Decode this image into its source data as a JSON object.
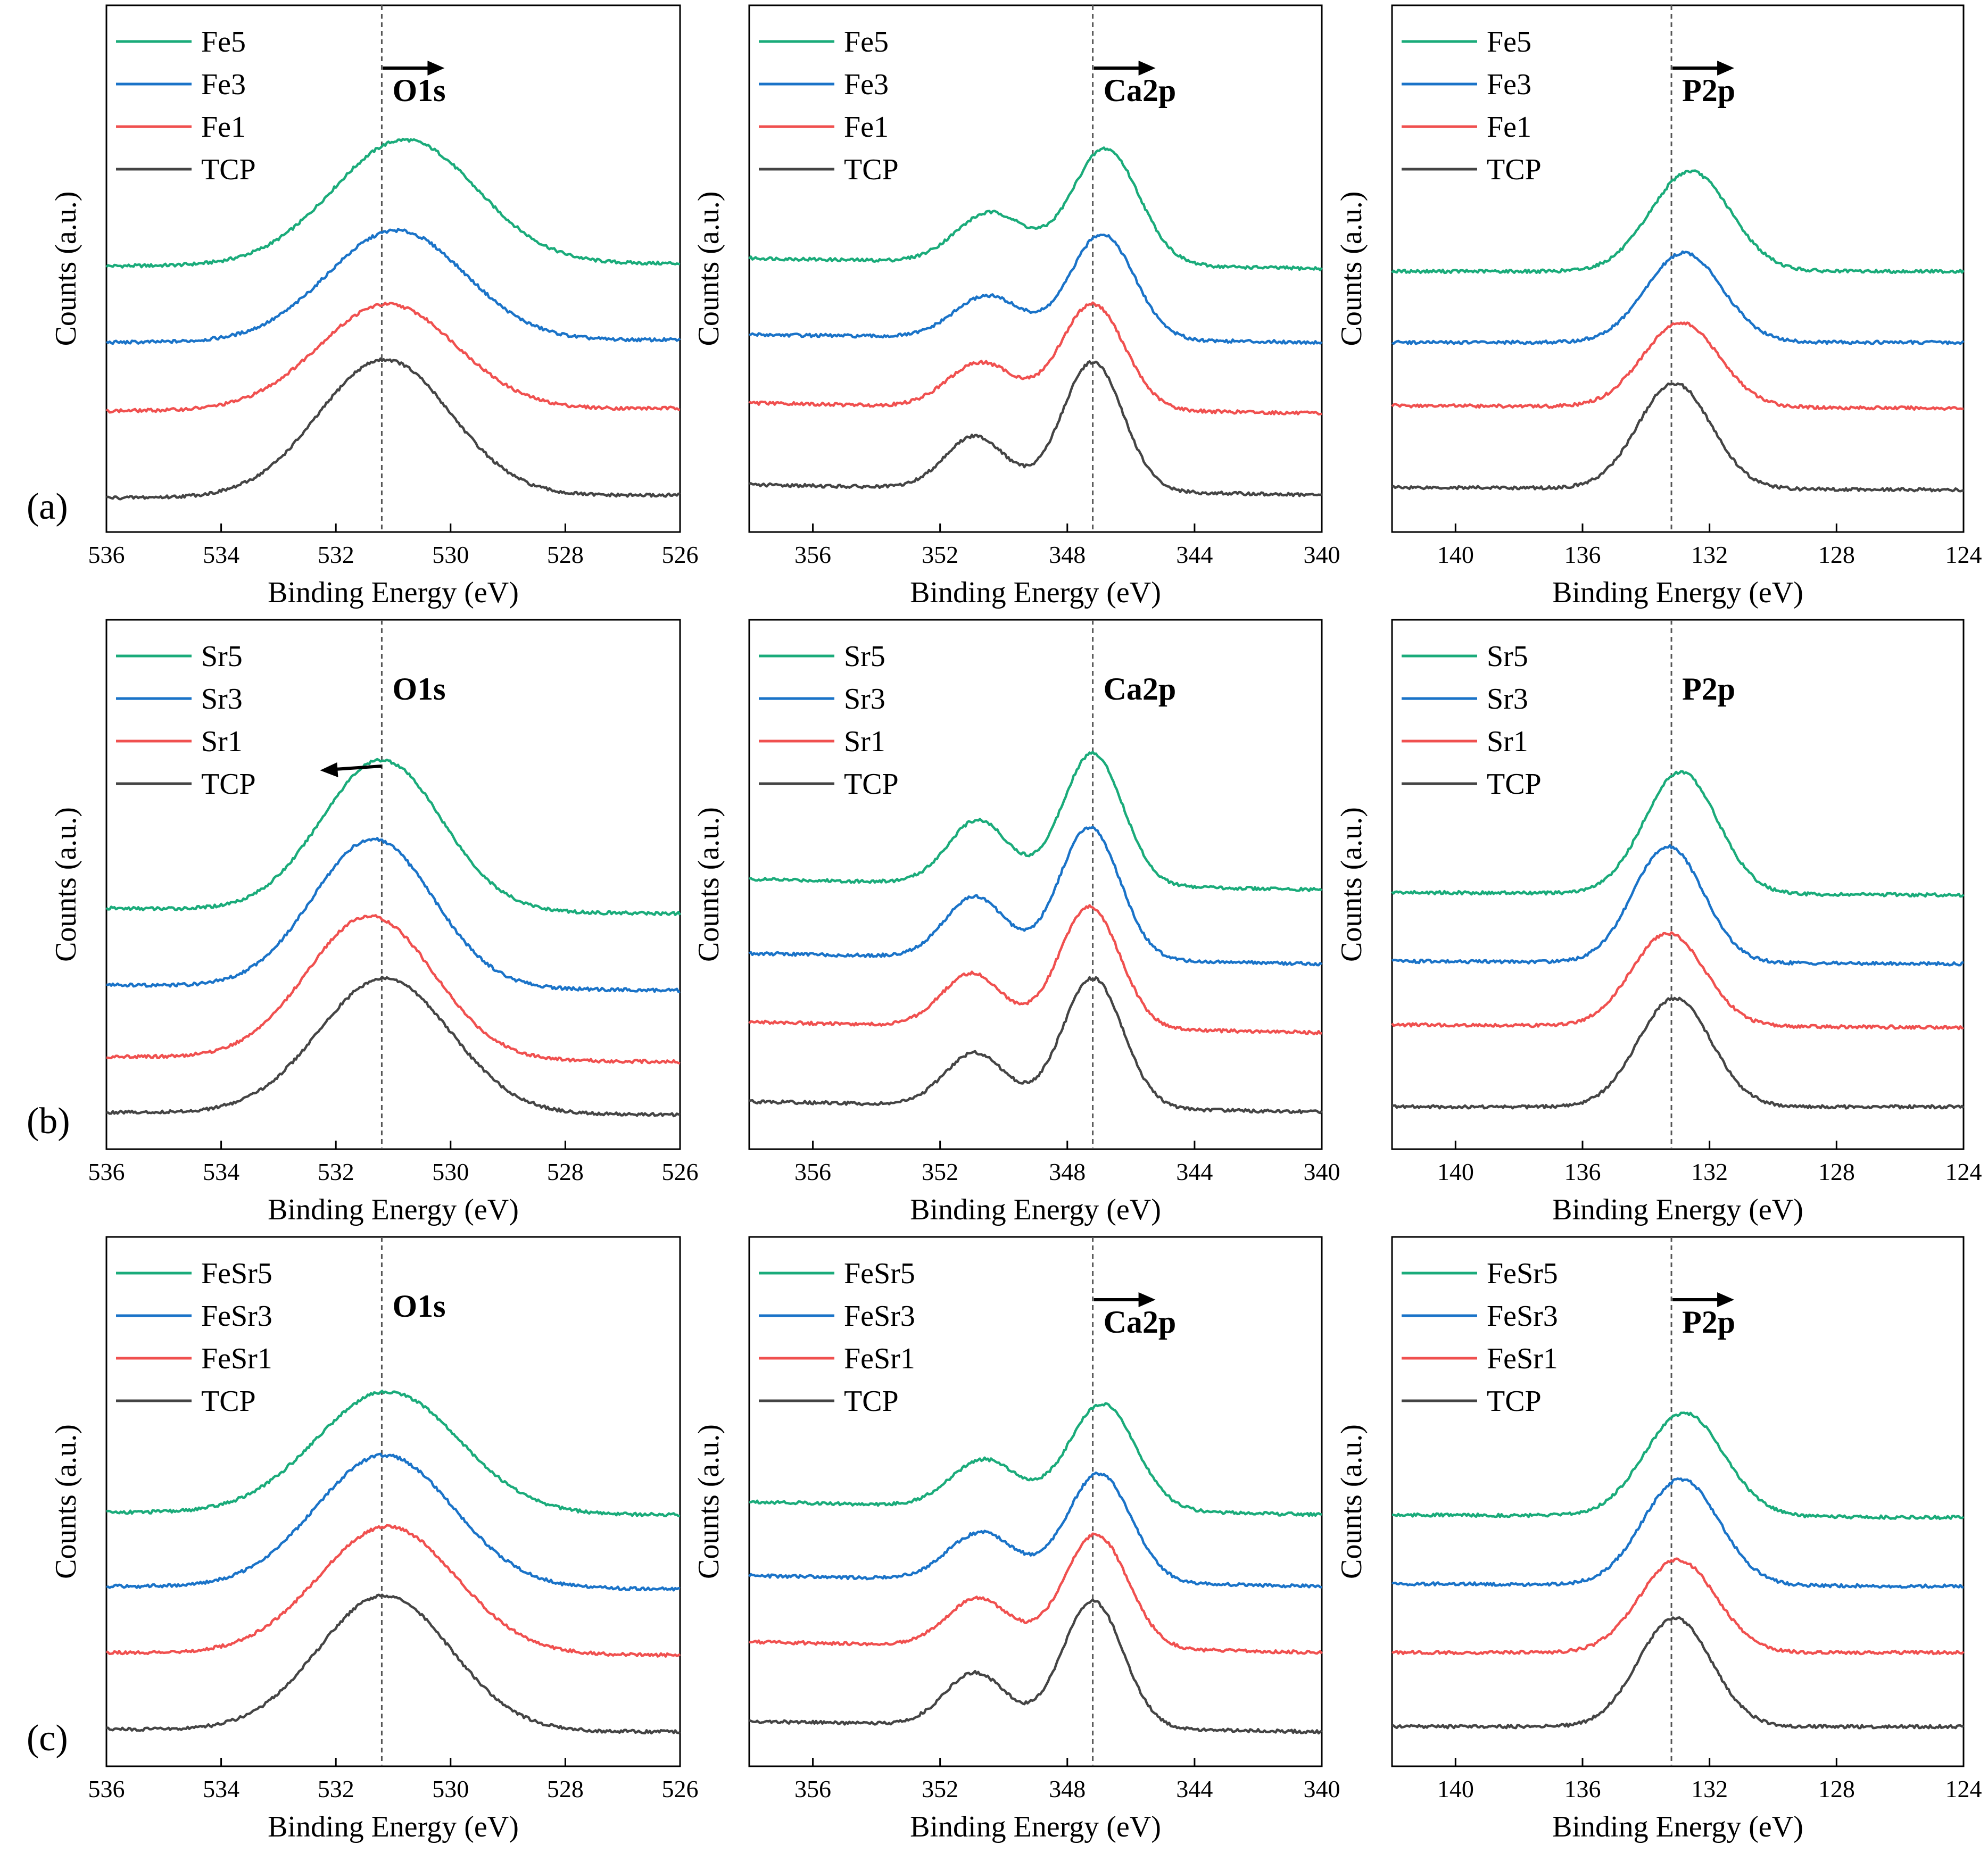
{
  "figure": {
    "rows": [
      "(a)",
      "(b)",
      "(c)"
    ]
  },
  "chart_data": [
    {
      "type": "line",
      "row": "(a)",
      "peak_label": "O1s",
      "shift_arrow": "right",
      "xlabel": "Binding Energy (eV)",
      "ylabel": "Counts (a.u.)",
      "xlim": [
        536,
        526
      ],
      "xticks": [
        536,
        534,
        532,
        530,
        528,
        526
      ],
      "reference_line_x": 531.2,
      "series": [
        {
          "name": "Fe5",
          "color": "#1aab7a",
          "baseline_left": 0.505,
          "baseline_right": 0.51,
          "peaks": [
            {
              "center": 530.8,
              "height": 0.237,
              "width": 1.25
            }
          ]
        },
        {
          "name": "Fe3",
          "color": "#1a73c8",
          "baseline_left": 0.36,
          "baseline_right": 0.365,
          "peaks": [
            {
              "center": 530.95,
              "height": 0.21,
              "width": 1.2
            }
          ]
        },
        {
          "name": "Fe1",
          "color": "#f0504f",
          "baseline_left": 0.23,
          "baseline_right": 0.235,
          "peaks": [
            {
              "center": 531.1,
              "height": 0.2,
              "width": 1.2
            }
          ]
        },
        {
          "name": "TCP",
          "color": "#444444",
          "baseline_left": 0.065,
          "baseline_right": 0.07,
          "peaks": [
            {
              "center": 531.15,
              "height": 0.26,
              "width": 1.15
            }
          ]
        }
      ]
    },
    {
      "type": "line",
      "row": "(a)",
      "peak_label": "Ca2p",
      "shift_arrow": "right",
      "xlabel": "Binding Energy (eV)",
      "ylabel": "Counts (a.u.)",
      "xlim": [
        358,
        340
      ],
      "xticks": [
        356,
        352,
        348,
        344,
        340
      ],
      "reference_line_x": 347.2,
      "series": [
        {
          "name": "Fe5",
          "color": "#1aab7a",
          "baseline_left": 0.52,
          "baseline_right": 0.5,
          "peaks": [
            {
              "center": 346.8,
              "height": 0.22,
              "width": 1.05
            },
            {
              "center": 350.4,
              "height": 0.095,
              "width": 1.1
            }
          ]
        },
        {
          "name": "Fe3",
          "color": "#1a73c8",
          "baseline_left": 0.375,
          "baseline_right": 0.36,
          "peaks": [
            {
              "center": 346.9,
              "height": 0.2,
              "width": 1.0
            },
            {
              "center": 350.5,
              "height": 0.08,
              "width": 1.05
            }
          ]
        },
        {
          "name": "Fe1",
          "color": "#f0504f",
          "baseline_left": 0.245,
          "baseline_right": 0.225,
          "peaks": [
            {
              "center": 347.2,
              "height": 0.2,
              "width": 1.0
            },
            {
              "center": 350.7,
              "height": 0.085,
              "width": 1.05
            }
          ]
        },
        {
          "name": "TCP",
          "color": "#444444",
          "baseline_left": 0.09,
          "baseline_right": 0.07,
          "peaks": [
            {
              "center": 347.2,
              "height": 0.245,
              "width": 0.95
            },
            {
              "center": 350.9,
              "height": 0.1,
              "width": 0.95
            }
          ]
        }
      ]
    },
    {
      "type": "line",
      "row": "(a)",
      "peak_label": "P2p",
      "shift_arrow": "right",
      "xlabel": "Binding Energy (eV)",
      "ylabel": "Counts (a.u.)",
      "xlim": [
        142,
        124
      ],
      "xticks": [
        140,
        136,
        132,
        128,
        124
      ],
      "reference_line_x": 133.2,
      "series": [
        {
          "name": "Fe5",
          "color": "#1aab7a",
          "baseline_left": 0.495,
          "baseline_right": 0.495,
          "peaks": [
            {
              "center": 132.6,
              "height": 0.19,
              "width": 1.25
            }
          ]
        },
        {
          "name": "Fe3",
          "color": "#1a73c8",
          "baseline_left": 0.36,
          "baseline_right": 0.36,
          "peaks": [
            {
              "center": 132.8,
              "height": 0.17,
              "width": 1.2
            }
          ]
        },
        {
          "name": "Fe1",
          "color": "#f0504f",
          "baseline_left": 0.24,
          "baseline_right": 0.235,
          "peaks": [
            {
              "center": 132.9,
              "height": 0.16,
              "width": 1.2
            }
          ]
        },
        {
          "name": "TCP",
          "color": "#444444",
          "baseline_left": 0.085,
          "baseline_right": 0.08,
          "peaks": [
            {
              "center": 133.1,
              "height": 0.2,
              "width": 1.15
            }
          ]
        }
      ]
    },
    {
      "type": "line",
      "row": "(b)",
      "peak_label": "O1s",
      "shift_arrow": "left",
      "xlabel": "Binding Energy (eV)",
      "ylabel": "Counts (a.u.)",
      "xlim": [
        536,
        526
      ],
      "xticks": [
        536,
        534,
        532,
        530,
        528,
        526
      ],
      "reference_line_x": 531.2,
      "series": [
        {
          "name": "Sr5",
          "color": "#1aab7a",
          "baseline_left": 0.455,
          "baseline_right": 0.445,
          "peaks": [
            {
              "center": 531.2,
              "height": 0.285,
              "width": 1.05
            }
          ]
        },
        {
          "name": "Sr3",
          "color": "#1a73c8",
          "baseline_left": 0.31,
          "baseline_right": 0.3,
          "peaks": [
            {
              "center": 531.35,
              "height": 0.28,
              "width": 1.05
            }
          ]
        },
        {
          "name": "Sr1",
          "color": "#f0504f",
          "baseline_left": 0.175,
          "baseline_right": 0.165,
          "peaks": [
            {
              "center": 531.4,
              "height": 0.27,
              "width": 1.1
            }
          ]
        },
        {
          "name": "TCP",
          "color": "#444444",
          "baseline_left": 0.07,
          "baseline_right": 0.065,
          "peaks": [
            {
              "center": 531.15,
              "height": 0.255,
              "width": 1.15
            }
          ]
        }
      ]
    },
    {
      "type": "line",
      "row": "(b)",
      "peak_label": "Ca2p",
      "shift_arrow": "none",
      "xlabel": "Binding Energy (eV)",
      "ylabel": "Counts (a.u.)",
      "xlim": [
        358,
        340
      ],
      "xticks": [
        356,
        352,
        348,
        344,
        340
      ],
      "reference_line_x": 347.2,
      "series": [
        {
          "name": "Sr5",
          "color": "#1aab7a",
          "baseline_left": 0.51,
          "baseline_right": 0.49,
          "peaks": [
            {
              "center": 347.2,
              "height": 0.25,
              "width": 0.95
            },
            {
              "center": 350.8,
              "height": 0.12,
              "width": 0.95
            }
          ]
        },
        {
          "name": "Sr3",
          "color": "#1a73c8",
          "baseline_left": 0.37,
          "baseline_right": 0.35,
          "peaks": [
            {
              "center": 347.3,
              "height": 0.25,
              "width": 0.95
            },
            {
              "center": 350.9,
              "height": 0.115,
              "width": 0.95
            }
          ]
        },
        {
          "name": "Sr1",
          "color": "#f0504f",
          "baseline_left": 0.24,
          "baseline_right": 0.22,
          "peaks": [
            {
              "center": 347.3,
              "height": 0.23,
              "width": 0.95
            },
            {
              "center": 351.0,
              "height": 0.1,
              "width": 0.95
            }
          ]
        },
        {
          "name": "TCP",
          "color": "#444444",
          "baseline_left": 0.09,
          "baseline_right": 0.07,
          "peaks": [
            {
              "center": 347.2,
              "height": 0.245,
              "width": 0.95
            },
            {
              "center": 350.9,
              "height": 0.1,
              "width": 0.95
            }
          ]
        }
      ]
    },
    {
      "type": "line",
      "row": "(b)",
      "peak_label": "P2p",
      "shift_arrow": "none",
      "xlabel": "Binding Energy (eV)",
      "ylabel": "Counts (a.u.)",
      "xlim": [
        142,
        124
      ],
      "xticks": [
        140,
        136,
        132,
        128,
        124
      ],
      "reference_line_x": 133.2,
      "series": [
        {
          "name": "Sr5",
          "color": "#1aab7a",
          "baseline_left": 0.485,
          "baseline_right": 0.48,
          "peaks": [
            {
              "center": 132.9,
              "height": 0.23,
              "width": 1.15
            }
          ]
        },
        {
          "name": "Sr3",
          "color": "#1a73c8",
          "baseline_left": 0.355,
          "baseline_right": 0.35,
          "peaks": [
            {
              "center": 133.3,
              "height": 0.22,
              "width": 1.1
            }
          ]
        },
        {
          "name": "Sr1",
          "color": "#f0504f",
          "baseline_left": 0.235,
          "baseline_right": 0.23,
          "peaks": [
            {
              "center": 133.3,
              "height": 0.175,
              "width": 1.15
            }
          ]
        },
        {
          "name": "TCP",
          "color": "#444444",
          "baseline_left": 0.08,
          "baseline_right": 0.08,
          "peaks": [
            {
              "center": 133.1,
              "height": 0.205,
              "width": 1.15
            }
          ]
        }
      ]
    },
    {
      "type": "line",
      "row": "(c)",
      "peak_label": "O1s",
      "shift_arrow": "none",
      "xlabel": "Binding Energy (eV)",
      "ylabel": "Counts (a.u.)",
      "xlim": [
        536,
        526
      ],
      "xticks": [
        536,
        534,
        532,
        530,
        528,
        526
      ],
      "reference_line_x": 531.2,
      "series": [
        {
          "name": "FeSr5",
          "color": "#1aab7a",
          "baseline_left": 0.48,
          "baseline_right": 0.475,
          "peaks": [
            {
              "center": 531.1,
              "height": 0.23,
              "width": 1.25
            }
          ]
        },
        {
          "name": "FeSr3",
          "color": "#1a73c8",
          "baseline_left": 0.34,
          "baseline_right": 0.335,
          "peaks": [
            {
              "center": 531.15,
              "height": 0.25,
              "width": 1.2
            }
          ]
        },
        {
          "name": "FeSr1",
          "color": "#f0504f",
          "baseline_left": 0.215,
          "baseline_right": 0.21,
          "peaks": [
            {
              "center": 531.1,
              "height": 0.24,
              "width": 1.2
            }
          ]
        },
        {
          "name": "TCP",
          "color": "#444444",
          "baseline_left": 0.07,
          "baseline_right": 0.065,
          "peaks": [
            {
              "center": 531.15,
              "height": 0.255,
              "width": 1.15
            }
          ]
        }
      ]
    },
    {
      "type": "line",
      "row": "(c)",
      "peak_label": "Ca2p",
      "shift_arrow": "right",
      "xlabel": "Binding Energy (eV)",
      "ylabel": "Counts (a.u.)",
      "xlim": [
        358,
        340
      ],
      "xticks": [
        356,
        352,
        348,
        344,
        340
      ],
      "reference_line_x": 347.2,
      "series": [
        {
          "name": "FeSr5",
          "color": "#1aab7a",
          "baseline_left": 0.5,
          "baseline_right": 0.475,
          "peaks": [
            {
              "center": 346.9,
              "height": 0.2,
              "width": 1.05
            },
            {
              "center": 350.6,
              "height": 0.09,
              "width": 1.05
            }
          ]
        },
        {
          "name": "FeSr3",
          "color": "#1a73c8",
          "baseline_left": 0.36,
          "baseline_right": 0.34,
          "peaks": [
            {
              "center": 347.0,
              "height": 0.205,
              "width": 1.0
            },
            {
              "center": 350.7,
              "height": 0.09,
              "width": 1.05
            }
          ]
        },
        {
          "name": "FeSr1",
          "color": "#f0504f",
          "baseline_left": 0.235,
          "baseline_right": 0.215,
          "peaks": [
            {
              "center": 347.1,
              "height": 0.215,
              "width": 1.0
            },
            {
              "center": 350.8,
              "height": 0.09,
              "width": 1.0
            }
          ]
        },
        {
          "name": "TCP",
          "color": "#444444",
          "baseline_left": 0.085,
          "baseline_right": 0.065,
          "peaks": [
            {
              "center": 347.2,
              "height": 0.24,
              "width": 0.95
            },
            {
              "center": 350.9,
              "height": 0.1,
              "width": 0.95
            }
          ]
        }
      ]
    },
    {
      "type": "line",
      "row": "(c)",
      "peak_label": "P2p",
      "shift_arrow": "right",
      "xlabel": "Binding Energy (eV)",
      "ylabel": "Counts (a.u.)",
      "xlim": [
        142,
        124
      ],
      "xticks": [
        140,
        136,
        132,
        128,
        124
      ],
      "reference_line_x": 133.2,
      "series": [
        {
          "name": "FeSr5",
          "color": "#1aab7a",
          "baseline_left": 0.475,
          "baseline_right": 0.47,
          "peaks": [
            {
              "center": 132.8,
              "height": 0.195,
              "width": 1.25
            }
          ]
        },
        {
          "name": "FeSr3",
          "color": "#1a73c8",
          "baseline_left": 0.345,
          "baseline_right": 0.34,
          "peaks": [
            {
              "center": 132.9,
              "height": 0.2,
              "width": 1.2
            }
          ]
        },
        {
          "name": "FeSr1",
          "color": "#f0504f",
          "baseline_left": 0.215,
          "baseline_right": 0.215,
          "peaks": [
            {
              "center": 133.0,
              "height": 0.175,
              "width": 1.2
            }
          ]
        },
        {
          "name": "TCP",
          "color": "#444444",
          "baseline_left": 0.075,
          "baseline_right": 0.075,
          "peaks": [
            {
              "center": 133.1,
              "height": 0.205,
              "width": 1.15
            }
          ]
        }
      ]
    }
  ]
}
